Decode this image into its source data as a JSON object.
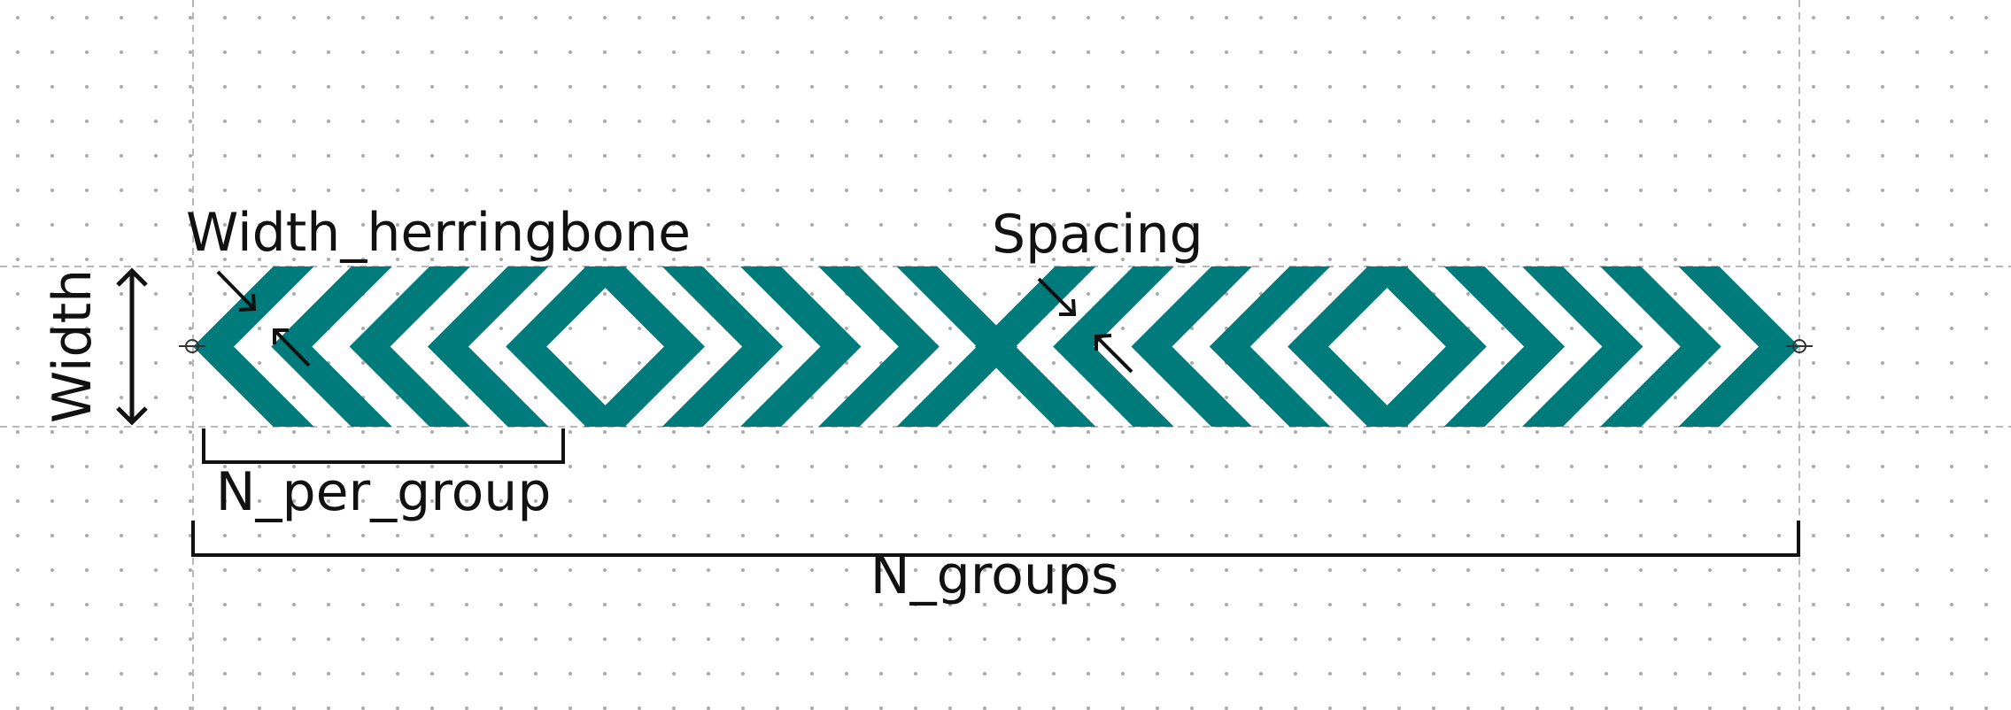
{
  "labels": {
    "width_herringbone": "Width_herringbone",
    "spacing": "Spacing",
    "width": "Width",
    "n_per_group": "N_per_group",
    "n_groups": "N_groups"
  },
  "chevron_groups": [
    {
      "count": 5,
      "direction": "left"
    },
    {
      "count": 5,
      "direction": "right"
    },
    {
      "count": 5,
      "direction": "left"
    },
    {
      "count": 5,
      "direction": "right"
    }
  ],
  "colors": {
    "chevron": "#007b7b",
    "annotation": "#111111",
    "grid_dot": "#aaaaaa",
    "guide_line": "#b8b8b8",
    "background": "#ffffff"
  },
  "icons": {
    "port_markers": "crosshair-circle-icon",
    "dimension_arrows": "arrow-icon"
  }
}
